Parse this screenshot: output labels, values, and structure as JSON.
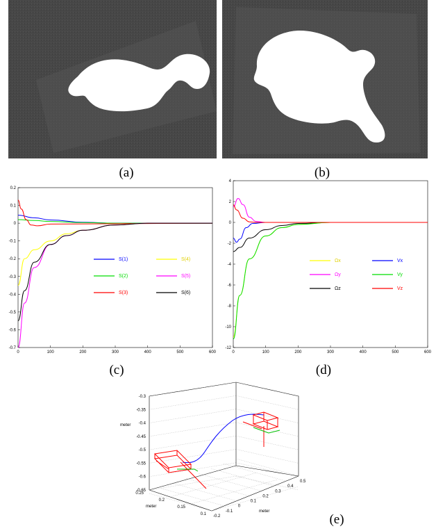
{
  "captions": {
    "a": "(a)",
    "b": "(b)",
    "c": "(c)",
    "d": "(d)",
    "e": "(e)"
  },
  "plot_c": {
    "xticks": [
      "0",
      "100",
      "200",
      "300",
      "400",
      "500",
      "600"
    ],
    "yticks": [
      "0.2",
      "0.1",
      "0",
      "-0.1",
      "-0.2",
      "-0.3",
      "-0.4",
      "-0.5",
      "-0.6",
      "-0.7"
    ],
    "legend": [
      {
        "label": "S(1)",
        "color": "#0000ff"
      },
      {
        "label": "S(4)",
        "color": "#ffff00"
      },
      {
        "label": "S(2)",
        "color": "#00dd00"
      },
      {
        "label": "S(5)",
        "color": "#ff00ff"
      },
      {
        "label": "S(3)",
        "color": "#ff0000"
      },
      {
        "label": "S(6)",
        "color": "#000000"
      }
    ]
  },
  "plot_d": {
    "xticks": [
      "0",
      "100",
      "200",
      "300",
      "400",
      "500",
      "600"
    ],
    "yticks": [
      "4",
      "2",
      "0",
      "-2",
      "-4",
      "-6",
      "-8",
      "-10",
      "-12"
    ],
    "legend": [
      {
        "label": "Ωx",
        "color": "#ffff00"
      },
      {
        "label": "Vx",
        "color": "#0000ff"
      },
      {
        "label": "Ωy",
        "color": "#ff00ff"
      },
      {
        "label": "Vy",
        "color": "#00dd00"
      },
      {
        "label": "Ωz",
        "color": "#000000"
      },
      {
        "label": "Vz",
        "color": "#ff0000"
      }
    ]
  },
  "plot_e": {
    "zticks": [
      "-0.3",
      "-0.35",
      "-0.4",
      "-0.45",
      "-0.5",
      "-0.55",
      "-0.6",
      "-0.65"
    ],
    "yticks": [
      "0.25",
      "0.2",
      "0.15",
      "0.1"
    ],
    "xticks": [
      "-0.2",
      "-0.1",
      "0",
      "0.1",
      "0.2",
      "0.3",
      "0.4",
      "0.5"
    ],
    "zlabel": "meter",
    "ylabel": "meter",
    "xlabel": "meter"
  },
  "chart_data": [
    {
      "type": "line",
      "xlim": [
        0,
        600
      ],
      "ylim": [
        -0.7,
        0.2
      ],
      "series": [
        {
          "name": "S(1)",
          "x": [
            0,
            50,
            100,
            200,
            300,
            600
          ],
          "values": [
            0.045,
            0.03,
            0.018,
            0.005,
            0.0,
            0.0
          ]
        },
        {
          "name": "S(2)",
          "x": [
            0,
            50,
            100,
            200,
            300,
            600
          ],
          "values": [
            0.02,
            0.015,
            0.01,
            0.003,
            0.0,
            0.0
          ]
        },
        {
          "name": "S(3)",
          "x": [
            0,
            10,
            25,
            40,
            60,
            100,
            600
          ],
          "values": [
            0.13,
            0.08,
            0.02,
            -0.01,
            -0.015,
            -0.005,
            0.0
          ]
        },
        {
          "name": "S(4)",
          "x": [
            0,
            20,
            50,
            100,
            150,
            200,
            300,
            400,
            600
          ],
          "values": [
            -0.35,
            -0.2,
            -0.15,
            -0.1,
            -0.06,
            -0.04,
            -0.01,
            0.0,
            0.0
          ]
        },
        {
          "name": "S(5)",
          "x": [
            0,
            20,
            50,
            100,
            150,
            200,
            300,
            400,
            600
          ],
          "values": [
            -0.7,
            -0.45,
            -0.25,
            -0.12,
            -0.07,
            -0.04,
            -0.01,
            0.0,
            0.0
          ]
        },
        {
          "name": "S(6)",
          "x": [
            0,
            20,
            50,
            100,
            150,
            200,
            300,
            400,
            600
          ],
          "values": [
            -0.55,
            -0.38,
            -0.22,
            -0.12,
            -0.07,
            -0.04,
            -0.01,
            0.0,
            0.0
          ]
        }
      ]
    },
    {
      "type": "line",
      "xlim": [
        0,
        600
      ],
      "ylim": [
        -12,
        4
      ],
      "series": [
        {
          "name": "Ωx",
          "x": [
            0,
            20,
            50,
            100,
            150,
            200,
            300,
            600
          ],
          "values": [
            -11,
            -7,
            -3.5,
            -1.3,
            -0.5,
            -0.2,
            0,
            0
          ]
        },
        {
          "name": "Ωy",
          "x": [
            0,
            15,
            30,
            50,
            70,
            100,
            600
          ],
          "values": [
            1.5,
            2.3,
            1.7,
            0.5,
            0.1,
            0,
            0
          ]
        },
        {
          "name": "Ωz",
          "x": [
            0,
            20,
            50,
            100,
            150,
            200,
            300,
            600
          ],
          "values": [
            -2.8,
            -2.4,
            -1.5,
            -0.7,
            -0.3,
            -0.1,
            0,
            0
          ]
        },
        {
          "name": "Vx",
          "x": [
            0,
            10,
            20,
            40,
            60,
            100,
            600
          ],
          "values": [
            -1.5,
            -1.9,
            -1.6,
            -0.5,
            -0.1,
            0,
            0
          ]
        },
        {
          "name": "Vy",
          "x": [
            0,
            20,
            50,
            100,
            150,
            200,
            300,
            600
          ],
          "values": [
            -11.2,
            -7,
            -3.5,
            -1.3,
            -0.5,
            -0.2,
            0,
            0
          ]
        },
        {
          "name": "Vz",
          "x": [
            0,
            10,
            30,
            50,
            70,
            100,
            600
          ],
          "values": [
            1.7,
            1.2,
            0.4,
            0.05,
            0,
            0,
            0
          ]
        }
      ]
    }
  ]
}
